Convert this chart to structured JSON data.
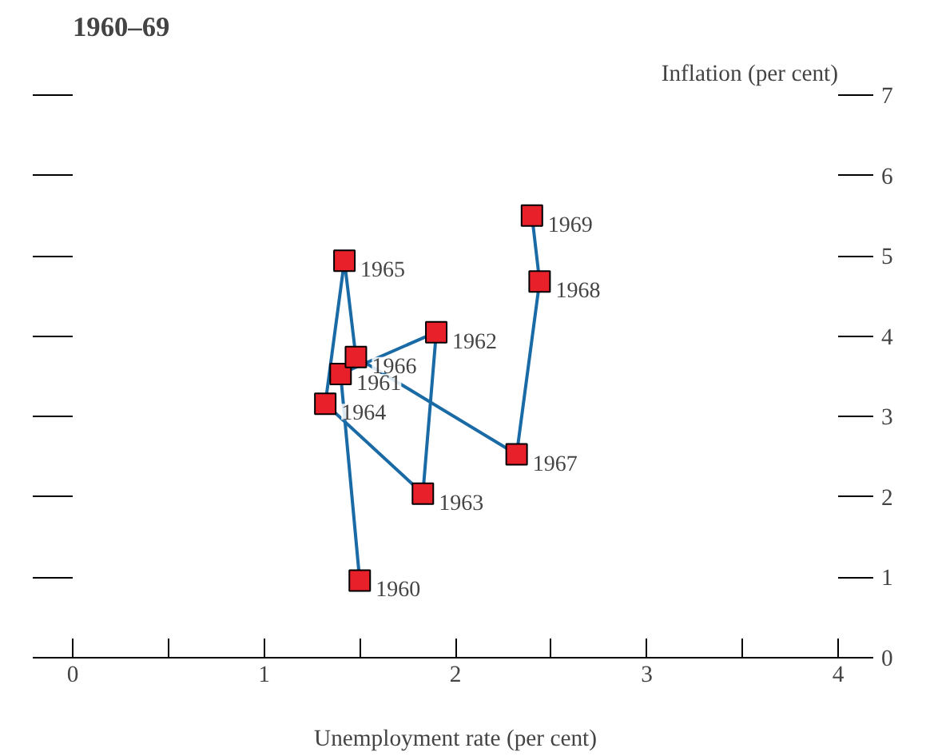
{
  "chart_data": {
    "type": "line",
    "title": "1960–69",
    "ylabel": "Inflation (per cent)",
    "xlabel": "Unemployment rate (per cent)",
    "x": [
      1.5,
      1.4,
      1.9,
      1.83,
      1.32,
      1.42,
      1.48,
      2.32,
      2.44,
      2.4
    ],
    "series": [
      {
        "color": "#1a6aa6",
        "colors": [
          "#e8202a",
          "#e8202a",
          "#e8202a",
          "#e8202a",
          "#e8202a",
          "#e8202a",
          "#e8202a",
          "#e8202a",
          "#e8202a",
          "#e8202a"
        ],
        "values": [
          0.96,
          3.53,
          4.05,
          2.04,
          3.16,
          4.94,
          3.74,
          2.53,
          4.68,
          5.5
        ]
      }
    ],
    "marker": "square",
    "xlim": [
      0,
      4
    ],
    "xticks": [
      0,
      {
        "value": 0.5,
        "label": null
      },
      1,
      {
        "value": 1.5,
        "label": null
      },
      2,
      {
        "value": 2.5,
        "label": null
      },
      3,
      {
        "value": 3.5,
        "label": null
      },
      4
    ],
    "ylim": [
      0,
      7
    ],
    "yticks": [
      0,
      1,
      2,
      3,
      4,
      5,
      6,
      7
    ],
    "grid": false,
    "annotations": [
      {
        "text": "1960",
        "x": 1.5,
        "y": 0.96
      },
      {
        "text": "1961",
        "x": 1.4,
        "y": 3.53
      },
      {
        "text": "1962",
        "x": 1.9,
        "y": 4.05
      },
      {
        "text": "1963",
        "x": 1.83,
        "y": 2.04
      },
      {
        "text": "1964",
        "x": 1.32,
        "y": 3.16
      },
      {
        "text": "1965",
        "x": 1.42,
        "y": 4.94
      },
      {
        "text": "1966",
        "x": 1.48,
        "y": 3.74
      },
      {
        "text": "1967",
        "x": 2.32,
        "y": 2.53
      },
      {
        "text": "1968",
        "x": 2.44,
        "y": 4.68
      },
      {
        "text": "1969",
        "x": 2.4,
        "y": 5.5
      }
    ]
  }
}
